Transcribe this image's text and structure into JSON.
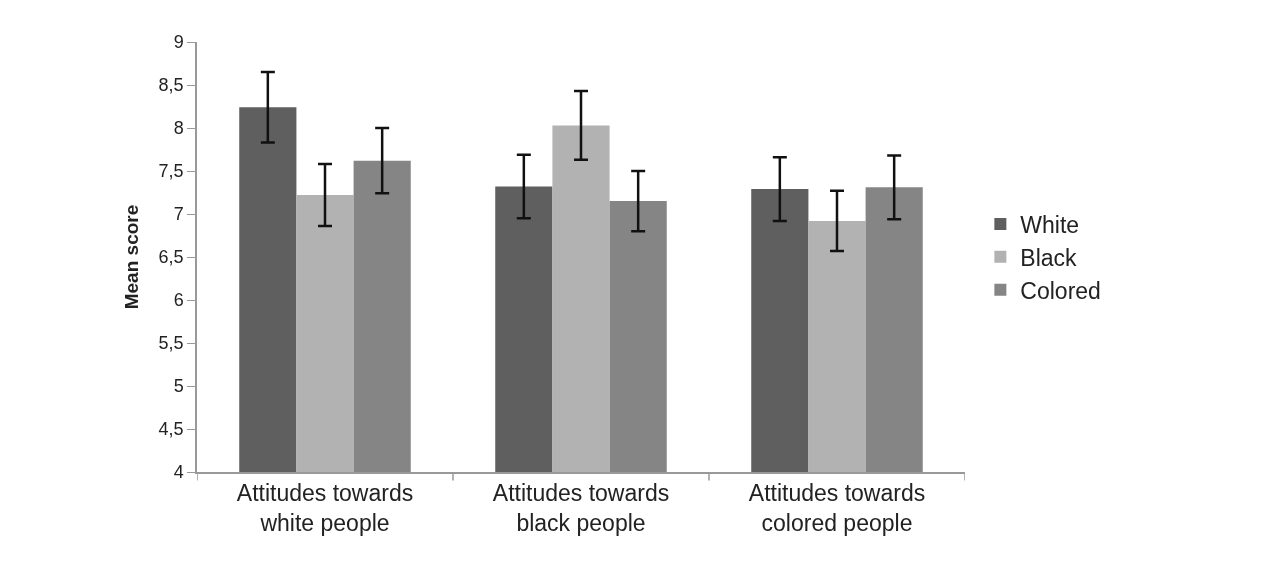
{
  "chart_data": {
    "type": "bar",
    "ylabel": "Mean score",
    "categories": [
      "Attitudes towards white people",
      "Attitudes towards black people",
      "Attitudes towards colored people"
    ],
    "series": [
      {
        "name": "White",
        "color": "#5f5f5f",
        "values": [
          8.24,
          7.32,
          7.29
        ],
        "errors": [
          0.41,
          0.37,
          0.37
        ]
      },
      {
        "name": "Black",
        "color": "#b2b2b2",
        "values": [
          7.22,
          8.03,
          6.92
        ],
        "errors": [
          0.36,
          0.4,
          0.35
        ]
      },
      {
        "name": "Colored",
        "color": "#858585",
        "values": [
          7.62,
          7.15,
          7.31
        ],
        "errors": [
          0.38,
          0.35,
          0.37
        ]
      }
    ],
    "ylim": [
      4,
      9
    ],
    "yticks": [
      4,
      {
        "value": 4.5,
        "label": "4,5"
      },
      5,
      {
        "value": 5.5,
        "label": "5,5"
      },
      6,
      {
        "value": 6.5,
        "label": "6,5"
      },
      7,
      {
        "value": 7.5,
        "label": "7,5"
      },
      8,
      {
        "value": 8.5,
        "label": "8,5"
      },
      9
    ],
    "legend": "right"
  }
}
